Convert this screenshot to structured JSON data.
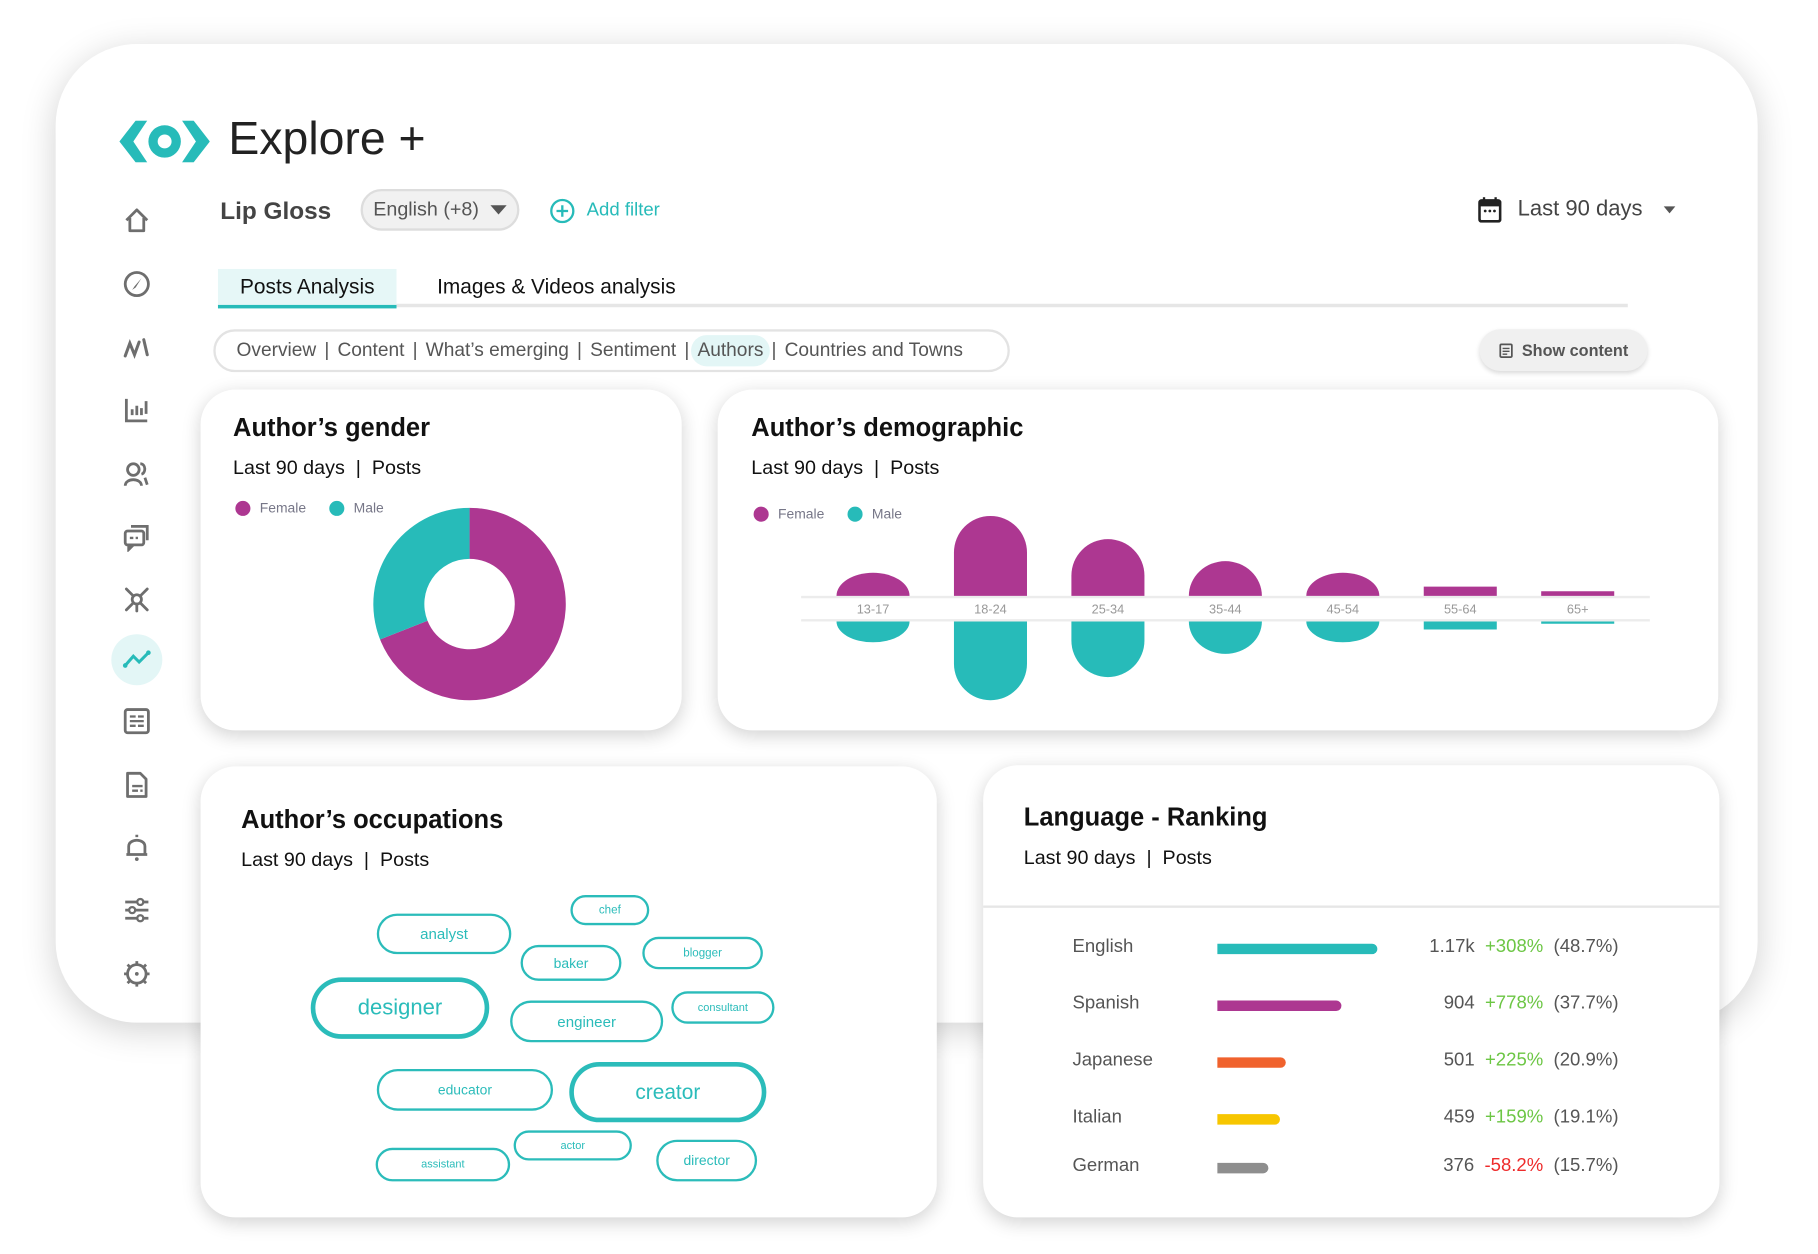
{
  "header": {
    "title": "Explore +",
    "logo": "eye-logo",
    "brand_color": "#27bbb9"
  },
  "sidebar": {
    "items": [
      {
        "icon": "home-icon"
      },
      {
        "icon": "compass-icon"
      },
      {
        "icon": "pulse-icon"
      },
      {
        "icon": "bar-chart-icon"
      },
      {
        "icon": "users-icon"
      },
      {
        "icon": "chat-icon"
      },
      {
        "icon": "network-icon"
      },
      {
        "icon": "trend-icon",
        "active": true
      },
      {
        "icon": "report-icon"
      },
      {
        "icon": "document-icon"
      },
      {
        "icon": "bell-icon"
      },
      {
        "icon": "sliders-icon"
      },
      {
        "icon": "settings-icon"
      }
    ]
  },
  "filters": {
    "keyword": "Lip Gloss",
    "language": "English (+8)",
    "add_filter": "Add filter",
    "date_range": "Last 90 days"
  },
  "tabs": [
    {
      "label": "Posts Analysis",
      "active": true
    },
    {
      "label": "Images & Videos analysis"
    }
  ],
  "subnav": {
    "items": [
      {
        "label": "Overview"
      },
      {
        "label": "Content"
      },
      {
        "label": "What’s emerging"
      },
      {
        "label": "Sentiment"
      },
      {
        "label": "Authors",
        "active": true
      },
      {
        "label": "Countries and Towns"
      }
    ],
    "separator": "|"
  },
  "show_content": "Show content",
  "colors": {
    "female": "#ad3791",
    "male": "#27bbb9"
  },
  "gender_card": {
    "title": "Author’s gender",
    "period": "Last 90 days",
    "metric": "Posts",
    "legend": [
      "Female",
      "Male"
    ]
  },
  "demographic_card": {
    "title": "Author’s demographic",
    "period": "Last 90 days",
    "metric": "Posts",
    "legend": [
      "Female",
      "Male"
    ]
  },
  "occupations_card": {
    "title": "Author’s occupations",
    "period": "Last 90 days",
    "metric": "Posts",
    "tags": [
      "analyst",
      "chef",
      "baker",
      "blogger",
      "designer",
      "engineer",
      "consultant",
      "educator",
      "creator",
      "actor",
      "assistant",
      "director"
    ]
  },
  "language_card": {
    "title": "Language - Ranking",
    "period": "Last 90 days",
    "metric": "Posts",
    "rows": [
      {
        "language": "English",
        "count": "1.17k",
        "change": "+308%",
        "share": "(48.7%)",
        "color": "#27bbb9",
        "change_color": "#6cc644",
        "share_value": 48.7
      },
      {
        "language": "Spanish",
        "count": "904",
        "change": "+778%",
        "share": "(37.7%)",
        "color": "#ad3791",
        "change_color": "#6cc644",
        "share_value": 37.7
      },
      {
        "language": "Japanese",
        "count": "501",
        "change": "+225%",
        "share": "(20.9%)",
        "color": "#f0622d",
        "change_color": "#6cc644",
        "share_value": 20.9
      },
      {
        "language": "Italian",
        "count": "459",
        "change": "+159%",
        "share": "(19.1%)",
        "color": "#f7c600",
        "change_color": "#6cc644",
        "share_value": 19.1
      },
      {
        "language": "German",
        "count": "376",
        "change": "-58.2%",
        "share": "(15.7%)",
        "color": "#8e8e8e",
        "change_color": "#ee2b2b",
        "share_value": 15.7
      }
    ]
  },
  "chart_data": [
    {
      "type": "pie",
      "variant": "donut",
      "categories": [
        "Female",
        "Male"
      ],
      "values": [
        69,
        31
      ]
    },
    {
      "type": "bar",
      "variant": "diverging",
      "categories": [
        "13-17",
        "18-24",
        "25-34",
        "35-44",
        "45-54",
        "55-64",
        "65+"
      ],
      "series": [
        {
          "name": "Female",
          "values": [
            20,
            69,
            49,
            30,
            20,
            8,
            4
          ]
        },
        {
          "name": "Male",
          "values": [
            18,
            68,
            48,
            28,
            18,
            7,
            2
          ]
        }
      ]
    }
  ]
}
